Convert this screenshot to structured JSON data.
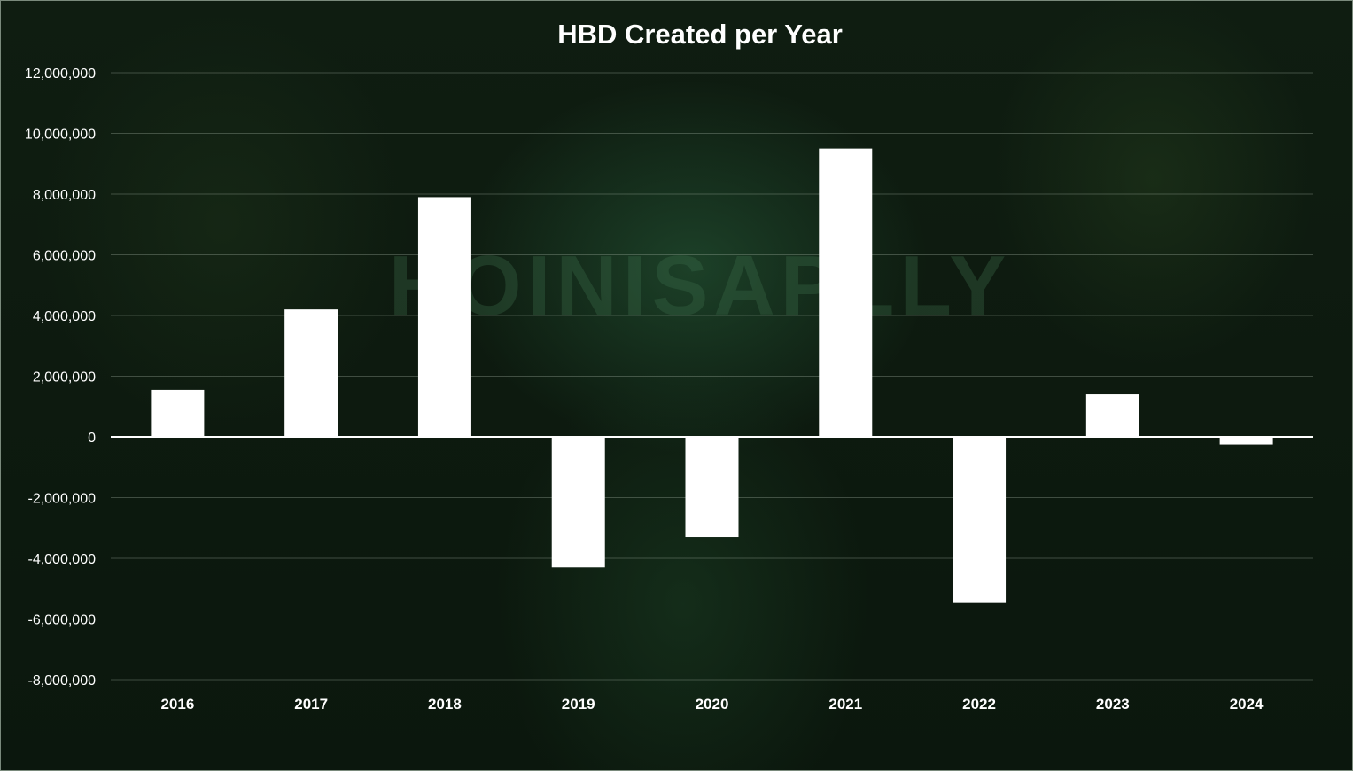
{
  "chart_data": {
    "type": "bar",
    "title": "HBD Created per Year",
    "xlabel": "",
    "ylabel": "",
    "categories": [
      "2016",
      "2017",
      "2018",
      "2019",
      "2020",
      "2021",
      "2022",
      "2023",
      "2024"
    ],
    "values": [
      1550000,
      4200000,
      7900000,
      -4300000,
      -3300000,
      9500000,
      -5450000,
      1400000,
      -250000
    ],
    "ylim": [
      -8000000,
      12000000
    ],
    "yticks": [
      12000000,
      10000000,
      8000000,
      6000000,
      4000000,
      2000000,
      0,
      -2000000,
      -4000000,
      -6000000,
      -8000000
    ],
    "ytick_labels": [
      "12,000,000",
      "10,000,000",
      "8,000,000",
      "6,000,000",
      "4,000,000",
      "2,000,000",
      "0",
      "-2,000,000",
      "-4,000,000",
      "-6,000,000",
      "-8,000,000"
    ],
    "grid": true,
    "legend": "none",
    "bar_color": "#ffffff",
    "background_color": "#0d1a0f"
  },
  "watermark": "HOINISAPLLY"
}
